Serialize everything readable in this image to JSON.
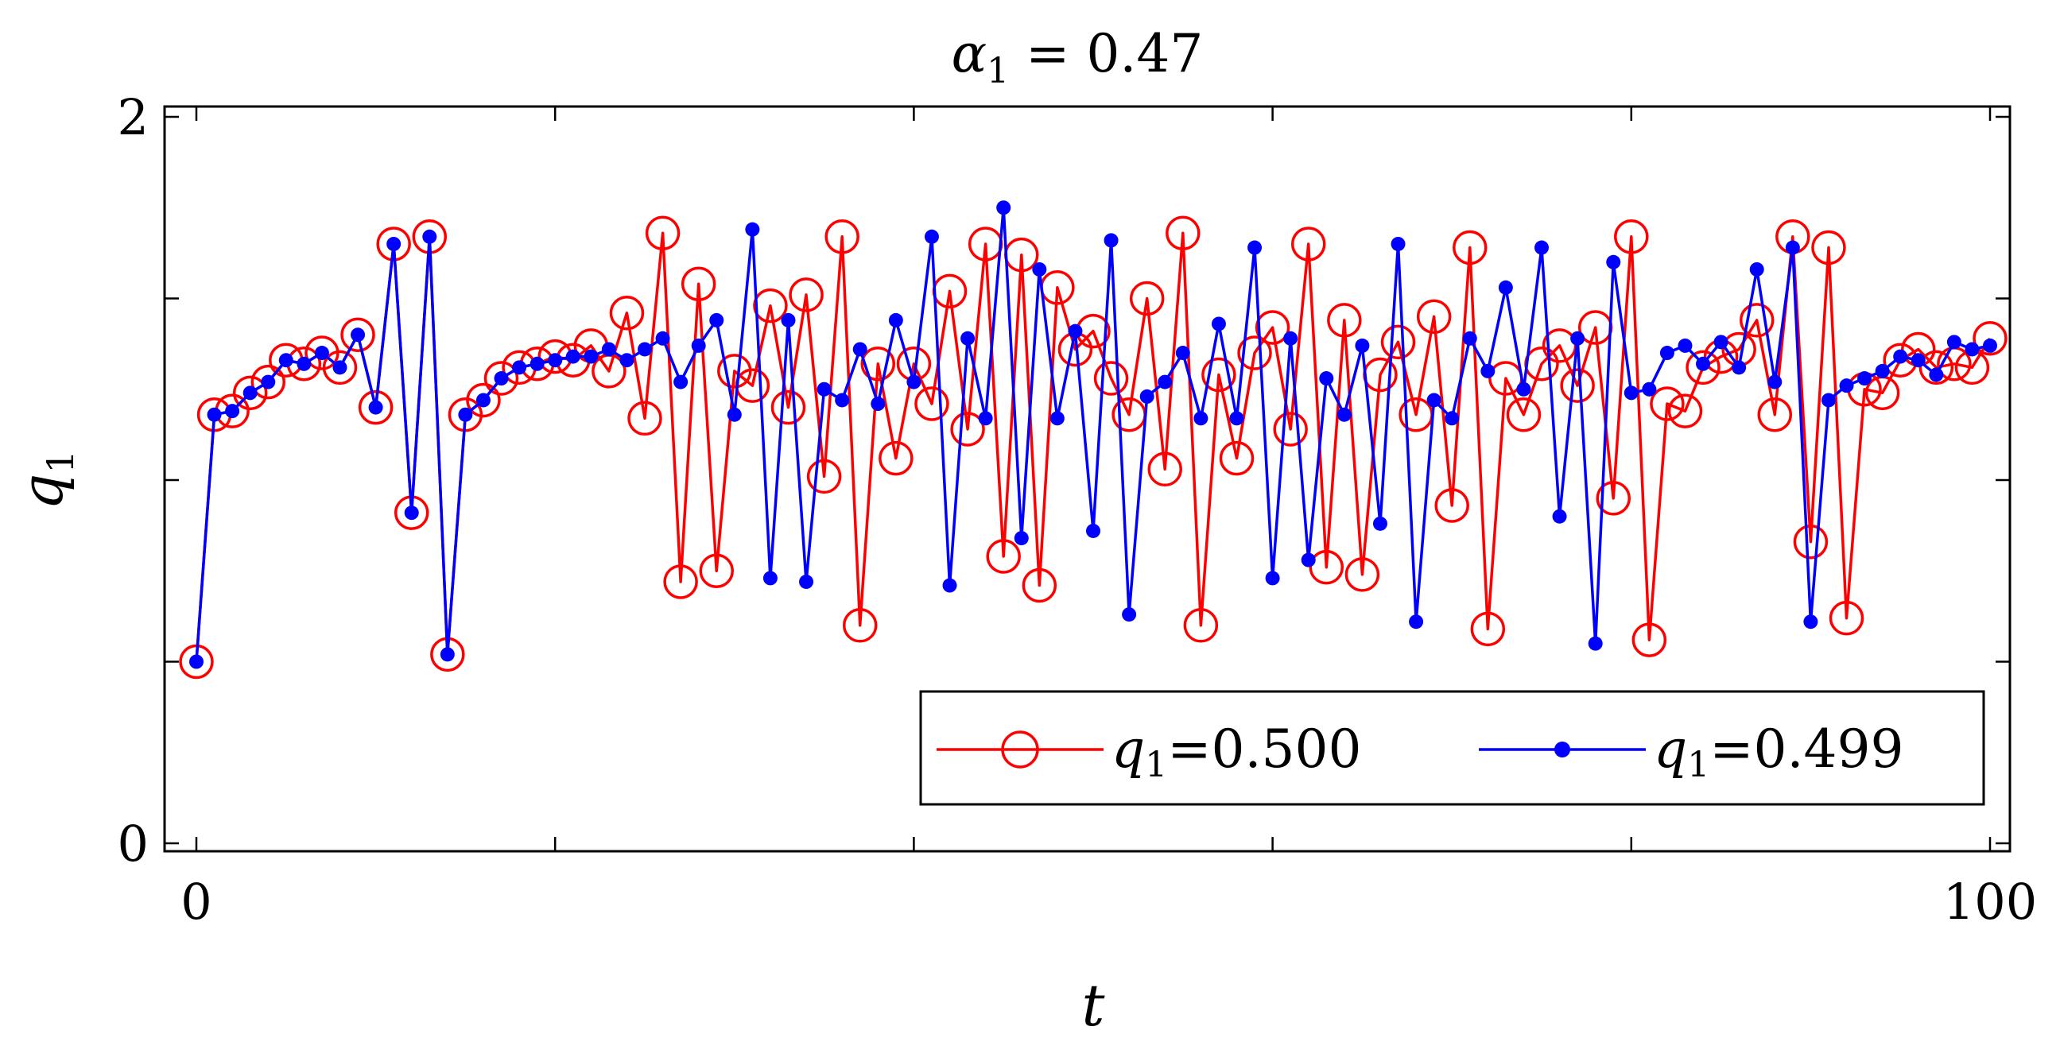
{
  "chart_data": {
    "type": "line",
    "title_symbol": "α",
    "title_subscript": "1",
    "title_rest": " = 0.47",
    "xlabel": "t",
    "ylabel_symbol": "q",
    "ylabel_subscript": "1",
    "xlim": [
      0,
      100
    ],
    "ylim": [
      0,
      2
    ],
    "x_ticks": [
      0,
      20,
      40,
      60,
      80,
      100
    ],
    "x_tick_labels": [
      "0",
      "",
      "",
      "",
      "",
      "100"
    ],
    "y_ticks": [
      0,
      0.5,
      1,
      1.5,
      2
    ],
    "y_tick_labels": [
      "0",
      "",
      "",
      "",
      "2"
    ],
    "grid": false,
    "legend_position": "bottom-right",
    "series": [
      {
        "name": "q1=0.500",
        "legend_symbol": "q",
        "legend_subscript": "1",
        "legend_value": "=0.500",
        "color": "#ff0000",
        "marker": "open-circle",
        "x": [
          0,
          1,
          2,
          3,
          4,
          5,
          6,
          7,
          8,
          9,
          10,
          11,
          12,
          13,
          14,
          15,
          16,
          17,
          18,
          19,
          20,
          21,
          22,
          23,
          24,
          25,
          26,
          27,
          28,
          29,
          30,
          31,
          32,
          33,
          34,
          35,
          36,
          37,
          38,
          39,
          40,
          41,
          42,
          43,
          44,
          45,
          46,
          47,
          48,
          49,
          50,
          51,
          52,
          53,
          54,
          55,
          56,
          57,
          58,
          59,
          60,
          61,
          62,
          63,
          64,
          65,
          66,
          67,
          68,
          69,
          70,
          71,
          72,
          73,
          74,
          75,
          76,
          77,
          78,
          79,
          80,
          81,
          82,
          83,
          84,
          85,
          86,
          87,
          88,
          89,
          90,
          91,
          92,
          93,
          94,
          95,
          96,
          97,
          98,
          99,
          100
        ],
        "values": [
          0.5,
          1.18,
          1.19,
          1.24,
          1.27,
          1.33,
          1.32,
          1.35,
          1.31,
          1.4,
          1.2,
          1.65,
          0.91,
          1.67,
          0.52,
          1.18,
          1.22,
          1.28,
          1.31,
          1.32,
          1.34,
          1.33,
          1.37,
          1.3,
          1.46,
          1.17,
          1.68,
          0.72,
          1.54,
          0.75,
          1.3,
          1.26,
          1.48,
          1.2,
          1.51,
          1.01,
          1.67,
          0.6,
          1.32,
          1.06,
          1.32,
          1.21,
          1.52,
          1.14,
          1.65,
          0.79,
          1.62,
          0.71,
          1.53,
          1.36,
          1.41,
          1.28,
          1.18,
          1.5,
          1.03,
          1.68,
          0.6,
          1.29,
          1.06,
          1.35,
          1.42,
          1.14,
          1.65,
          0.76,
          1.44,
          0.74,
          1.29,
          1.38,
          1.18,
          1.45,
          0.93,
          1.64,
          0.59,
          1.28,
          1.18,
          1.32,
          1.37,
          1.26,
          1.42,
          0.95,
          1.67,
          0.56,
          1.21,
          1.19,
          1.31,
          1.34,
          1.36,
          1.44,
          1.18,
          1.67,
          0.83,
          1.64,
          0.62,
          1.25,
          1.24,
          1.33,
          1.36,
          1.31,
          1.32,
          1.31,
          1.39
        ]
      },
      {
        "name": "q1=0.499",
        "legend_symbol": "q",
        "legend_subscript": "1",
        "legend_value": "=0.499",
        "color": "#0000ff",
        "marker": "filled-dot",
        "x": [
          0,
          1,
          2,
          3,
          4,
          5,
          6,
          7,
          8,
          9,
          10,
          11,
          12,
          13,
          14,
          15,
          16,
          17,
          18,
          19,
          20,
          21,
          22,
          23,
          24,
          25,
          26,
          27,
          28,
          29,
          30,
          31,
          32,
          33,
          34,
          35,
          36,
          37,
          38,
          39,
          40,
          41,
          42,
          43,
          44,
          45,
          46,
          47,
          48,
          49,
          50,
          51,
          52,
          53,
          54,
          55,
          56,
          57,
          58,
          59,
          60,
          61,
          62,
          63,
          64,
          65,
          66,
          67,
          68,
          69,
          70,
          71,
          72,
          73,
          74,
          75,
          76,
          77,
          78,
          79,
          80,
          81,
          82,
          83,
          84,
          85,
          86,
          87,
          88,
          89,
          90,
          91,
          92,
          93,
          94,
          95,
          96,
          97,
          98,
          99,
          100
        ],
        "values": [
          0.5,
          1.18,
          1.19,
          1.24,
          1.27,
          1.33,
          1.32,
          1.35,
          1.31,
          1.4,
          1.2,
          1.65,
          0.91,
          1.67,
          0.52,
          1.18,
          1.22,
          1.28,
          1.31,
          1.32,
          1.33,
          1.34,
          1.34,
          1.36,
          1.33,
          1.36,
          1.39,
          1.27,
          1.37,
          1.44,
          1.18,
          1.69,
          0.73,
          1.44,
          0.72,
          1.25,
          1.22,
          1.36,
          1.21,
          1.44,
          1.27,
          1.67,
          0.71,
          1.39,
          1.17,
          1.75,
          0.84,
          1.58,
          1.17,
          1.41,
          0.86,
          1.66,
          0.63,
          1.23,
          1.27,
          1.35,
          1.17,
          1.43,
          1.17,
          1.64,
          0.73,
          1.39,
          0.78,
          1.28,
          1.18,
          1.37,
          0.88,
          1.65,
          0.61,
          1.22,
          1.17,
          1.39,
          1.3,
          1.53,
          1.25,
          1.64,
          0.9,
          1.39,
          0.55,
          1.6,
          1.24,
          1.25,
          1.35,
          1.37,
          1.32,
          1.38,
          1.31,
          1.58,
          1.27,
          1.64,
          0.61,
          1.22,
          1.26,
          1.28,
          1.3,
          1.34,
          1.33,
          1.29,
          1.38,
          1.36,
          1.37
        ]
      }
    ]
  }
}
